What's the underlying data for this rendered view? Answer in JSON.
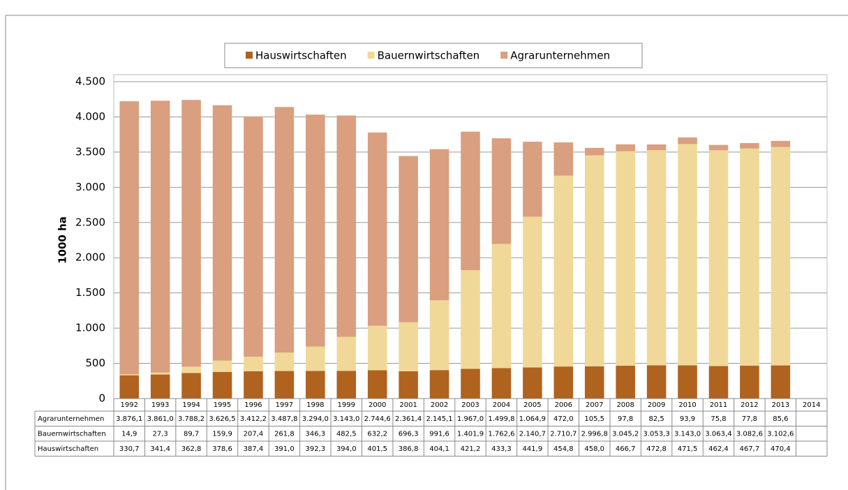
{
  "chart_data": {
    "type": "stacked_bar",
    "y_label": "1000 ha",
    "categories": [
      "1992",
      "1993",
      "1994",
      "1995",
      "1996",
      "1997",
      "1998",
      "1999",
      "2000",
      "2001",
      "2002",
      "2003",
      "2004",
      "2005",
      "2006",
      "2007",
      "2008",
      "2009",
      "2010",
      "2011",
      "2012",
      "2013",
      "2014"
    ],
    "series": [
      {
        "name": "Hauswirtschaften",
        "color": "#b0621f",
        "values": [
          330.7,
          341.4,
          362.8,
          378.6,
          387.4,
          391.0,
          392.3,
          394.0,
          401.5,
          386.8,
          404.1,
          421.2,
          433.3,
          441.9,
          454.8,
          458.0,
          466.7,
          472.8,
          471.5,
          462.4,
          467.7,
          470.4,
          null
        ],
        "value_labels": [
          "330,7",
          "341,4",
          "362,8",
          "378,6",
          "387,4",
          "391,0",
          "392,3",
          "394,0",
          "401,5",
          "386,8",
          "404,1",
          "421,2",
          "433,3",
          "441,9",
          "454,8",
          "458,0",
          "466,7",
          "472,8",
          "471,5",
          "462,4",
          "467,7",
          "470,4",
          null
        ]
      },
      {
        "name": "Bauernwirtschaften",
        "color": "#f0d898",
        "values": [
          14.9,
          27.3,
          89.7,
          159.9,
          207.4,
          261.8,
          346.3,
          482.5,
          632.2,
          696.3,
          991.6,
          1401.9,
          1762.6,
          2140.7,
          2710.7,
          2996.8,
          3045.2,
          3053.3,
          3143.0,
          3063.4,
          3082.6,
          3102.6,
          null
        ],
        "value_labels": [
          "14,9",
          "27,3",
          "89,7",
          "159,9",
          "207,4",
          "261,8",
          "346,3",
          "482,5",
          "632,2",
          "696,3",
          "991,6",
          "1.401,9",
          "1.762,6",
          "2.140,7",
          "2.710,7",
          "2.996,8",
          "3.045,2",
          "3.053,3",
          "3.143,0",
          "3.063,4",
          "3.082,6",
          "3.102,6",
          null
        ]
      },
      {
        "name": "Agrarunternehmen",
        "color": "#d99f7f",
        "values": [
          3876.1,
          3861.0,
          3788.2,
          3626.5,
          3412.2,
          3487.8,
          3294.0,
          3143.0,
          2744.6,
          2361.4,
          2145.1,
          1967.0,
          1499.8,
          1064.9,
          472.0,
          105.5,
          97.8,
          82.5,
          93.9,
          75.8,
          77.8,
          85.6,
          null
        ],
        "value_labels": [
          "3.876,1",
          "3.861,0",
          "3.788,2",
          "3.626,5",
          "3.412,2",
          "3.487,8",
          "3.294,0",
          "3.143,0",
          "2.744,6",
          "2.361,4",
          "2.145,1",
          "1.967,0",
          "1.499,8",
          "1.064,9",
          "472,0",
          "105,5",
          "97,8",
          "82,5",
          "93,9",
          "75,8",
          "77,8",
          "85,6",
          null
        ]
      }
    ],
    "ylim": [
      0,
      4500
    ],
    "yticks": [
      0,
      500,
      {
        "value": 1000,
        "label": "1.000"
      },
      {
        "value": 1500,
        "label": "1.500"
      },
      {
        "value": 2000,
        "label": "2.000"
      },
      {
        "value": 2500,
        "label": "2.500"
      },
      {
        "value": 3000,
        "label": "3.000"
      },
      {
        "value": 3500,
        "label": "3.500"
      },
      {
        "value": 4000,
        "label": "4.000"
      },
      {
        "value": 4500,
        "label": "4.500"
      }
    ],
    "grid": true,
    "legend": "top"
  }
}
